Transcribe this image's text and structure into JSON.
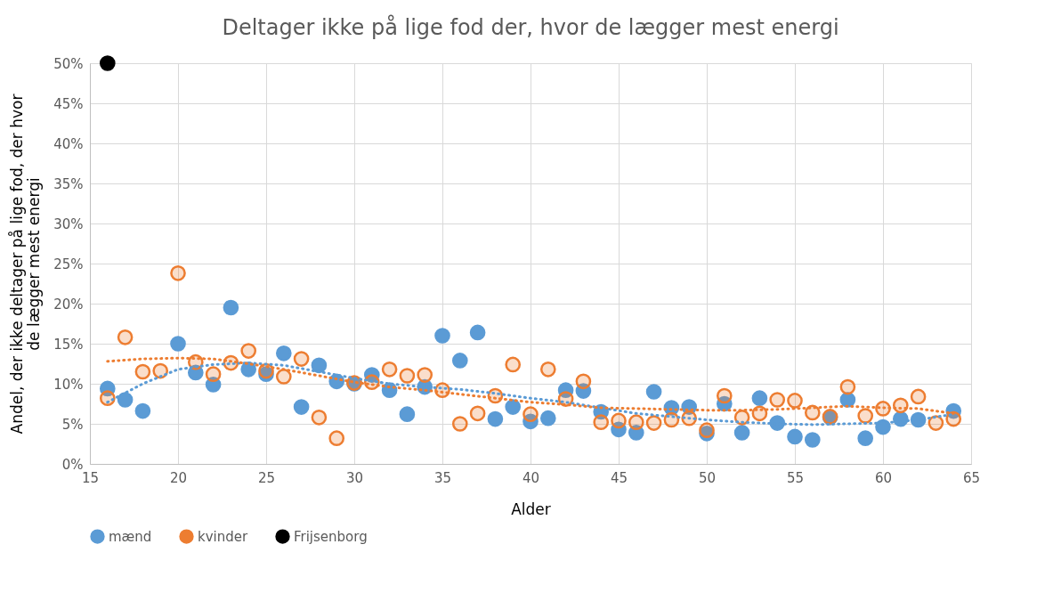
{
  "chart_data": {
    "type": "scatter",
    "title": "Deltager ikke på lige fod der, hvor de lægger mest energi",
    "xlabel": "Alder",
    "ylabel": "Andel, der ikke deltager på lige fod, der hvor de lægger mest energi",
    "x": [
      16,
      17,
      18,
      19,
      20,
      21,
      22,
      23,
      24,
      25,
      26,
      27,
      28,
      29,
      30,
      31,
      32,
      33,
      34,
      35,
      36,
      37,
      38,
      39,
      40,
      41,
      42,
      43,
      44,
      45,
      46,
      47,
      48,
      49,
      50,
      51,
      52,
      53,
      54,
      55,
      56,
      57,
      58,
      59,
      60,
      61,
      62,
      63,
      64
    ],
    "series": [
      {
        "name": "mænd",
        "color": "#5b9bd5",
        "values": [
          9.4,
          8.0,
          6.6,
          null,
          15.0,
          11.4,
          9.9,
          19.5,
          11.8,
          11.2,
          13.8,
          7.1,
          12.3,
          10.3,
          10.0,
          11.1,
          9.2,
          6.2,
          9.6,
          16.0,
          12.9,
          16.4,
          5.6,
          7.1,
          5.3,
          5.7,
          9.2,
          9.1,
          6.5,
          4.3,
          3.9,
          9.0,
          7.0,
          7.1,
          3.8,
          7.5,
          3.9,
          8.2,
          5.1,
          3.4,
          3.0,
          5.8,
          8.0,
          3.2,
          4.6,
          5.6,
          5.5,
          null,
          6.6
        ]
      },
      {
        "name": "kvinder",
        "color": "#ed7d31",
        "values": [
          8.2,
          15.8,
          11.5,
          11.6,
          23.8,
          12.7,
          11.2,
          12.6,
          14.1,
          11.6,
          10.9,
          13.1,
          5.8,
          3.2,
          10.1,
          10.2,
          11.8,
          11.0,
          11.1,
          9.2,
          5.0,
          6.3,
          8.5,
          12.4,
          6.2,
          11.8,
          8.1,
          10.3,
          5.2,
          5.4,
          5.2,
          5.1,
          5.5,
          5.7,
          4.2,
          8.5,
          5.8,
          6.3,
          8.0,
          7.9,
          6.4,
          5.9,
          9.6,
          6.0,
          6.9,
          7.3,
          8.4,
          5.1,
          5.6
        ]
      },
      {
        "name": "Frijsenborg",
        "color": "#000000",
        "x": [
          16
        ],
        "values": [
          50
        ]
      },
      {
        "type": "line",
        "line_style": "dotted",
        "marker": "none",
        "color": "#5b9bd5",
        "x": [
          16,
          18,
          20,
          22,
          24,
          26,
          28,
          30,
          32,
          34,
          36,
          38,
          40,
          42,
          44,
          46,
          48,
          50,
          52,
          54,
          56,
          58,
          60,
          62,
          64
        ],
        "values": [
          7.7,
          10.0,
          11.8,
          12.4,
          12.6,
          12.3,
          11.5,
          10.7,
          10.0,
          9.6,
          9.3,
          8.8,
          8.2,
          7.7,
          7.0,
          6.3,
          5.9,
          5.5,
          5.2,
          5.0,
          4.9,
          5.0,
          5.1,
          5.5,
          6.2
        ]
      },
      {
        "type": "line",
        "line_style": "dotted",
        "marker": "none",
        "color": "#ed7d31",
        "x": [
          16,
          18,
          20,
          22,
          24,
          26,
          28,
          30,
          32,
          34,
          36,
          38,
          40,
          42,
          44,
          46,
          48,
          50,
          52,
          54,
          56,
          58,
          60,
          62,
          64
        ],
        "values": [
          12.8,
          13.1,
          13.2,
          13.1,
          12.5,
          11.8,
          11.0,
          10.2,
          9.6,
          9.2,
          8.7,
          8.2,
          7.7,
          7.4,
          7.0,
          6.9,
          6.8,
          6.7,
          6.7,
          6.8,
          7.0,
          7.2,
          7.0,
          6.9,
          6.3
        ]
      }
    ],
    "xlim": [
      15,
      65
    ],
    "xticks": [
      15,
      20,
      25,
      30,
      35,
      40,
      45,
      50,
      55,
      60,
      65
    ],
    "ylim": [
      0,
      50
    ],
    "yticks": [
      {
        "value": 0,
        "label": "0%"
      },
      {
        "value": 5,
        "label": "5%"
      },
      {
        "value": 10,
        "label": "10%"
      },
      {
        "value": 15,
        "label": "15%"
      },
      {
        "value": 20,
        "label": "20%"
      },
      {
        "value": 25,
        "label": "25%"
      },
      {
        "value": 30,
        "label": "30%"
      },
      {
        "value": 35,
        "label": "35%"
      },
      {
        "value": 40,
        "label": "40%"
      },
      {
        "value": 45,
        "label": "45%"
      },
      {
        "value": 50,
        "label": "50%"
      }
    ],
    "grid": true,
    "legend": "bottom left",
    "marker": "circle"
  }
}
